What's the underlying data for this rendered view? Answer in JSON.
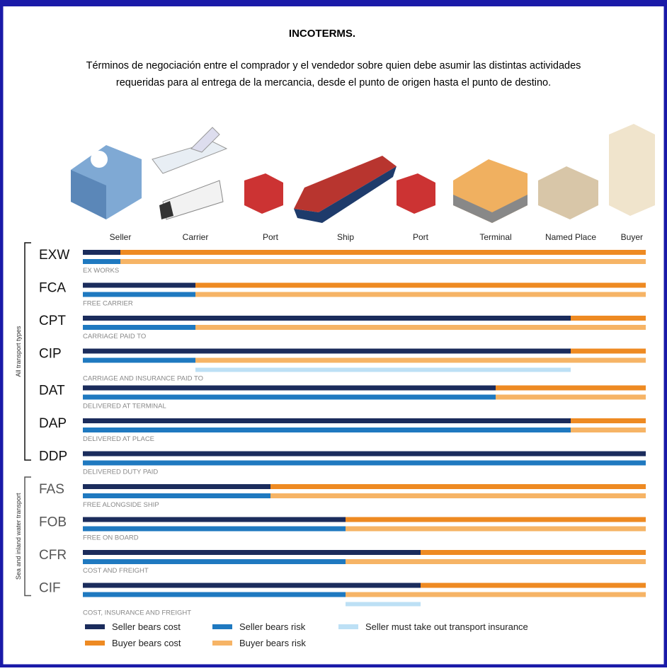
{
  "title": "INCOTERMS.",
  "description": [
    "Términos de negociación entre el comprador y el vendedor sobre quien debe asumir las distintas actividades",
    "requeridas para al entrega de la mercancia, desde el punto de origen hasta el punto de destino."
  ],
  "locations": [
    "Seller",
    "Carrier",
    "Port",
    "Ship",
    "Port",
    "Terminal",
    "Named Place",
    "Buyer"
  ],
  "groups": [
    {
      "label": "All transport types",
      "terms": [
        {
          "code": "EXW",
          "name": "EX WORKS",
          "cost": 0,
          "risk": 0
        },
        {
          "code": "FCA",
          "name": "FREE CARRIER",
          "cost": 1,
          "risk": 1
        },
        {
          "code": "CPT",
          "name": "CARRIAGE PAID TO",
          "cost": 6,
          "risk": 1
        },
        {
          "code": "CIP",
          "name": "CARRIAGE AND INSURANCE PAID TO",
          "cost": 6,
          "risk": 1,
          "insurance": [
            1,
            6
          ]
        },
        {
          "code": "DAT",
          "name": "DELIVERED AT TERMINAL",
          "cost": 5,
          "risk": 5
        },
        {
          "code": "DAP",
          "name": "DELIVERED AT PLACE",
          "cost": 6,
          "risk": 6
        },
        {
          "code": "DDP",
          "name": "DELIVERED DUTY PAID",
          "cost": 7,
          "risk": 7
        }
      ]
    },
    {
      "label": "Sea and inland water transport",
      "terms": [
        {
          "code": "FAS",
          "name": "FREE ALONGSIDE SHIP",
          "cost": 2,
          "risk": 2
        },
        {
          "code": "FOB",
          "name": "FREE ON BOARD",
          "cost": 3,
          "risk": 3
        },
        {
          "code": "CFR",
          "name": "COST AND FREIGHT",
          "cost": 4,
          "risk": 3
        },
        {
          "code": "CIF",
          "name": "COST, INSURANCE AND FREIGHT",
          "cost": 4,
          "risk": 3,
          "insurance": [
            3,
            4
          ]
        }
      ]
    }
  ],
  "legend": {
    "seller_cost": "Seller bears cost",
    "buyer_cost": "Buyer bears cost",
    "seller_risk": "Seller bears risk",
    "buyer_risk": "Buyer bears risk",
    "insurance": "Seller must take out transport insurance"
  }
}
